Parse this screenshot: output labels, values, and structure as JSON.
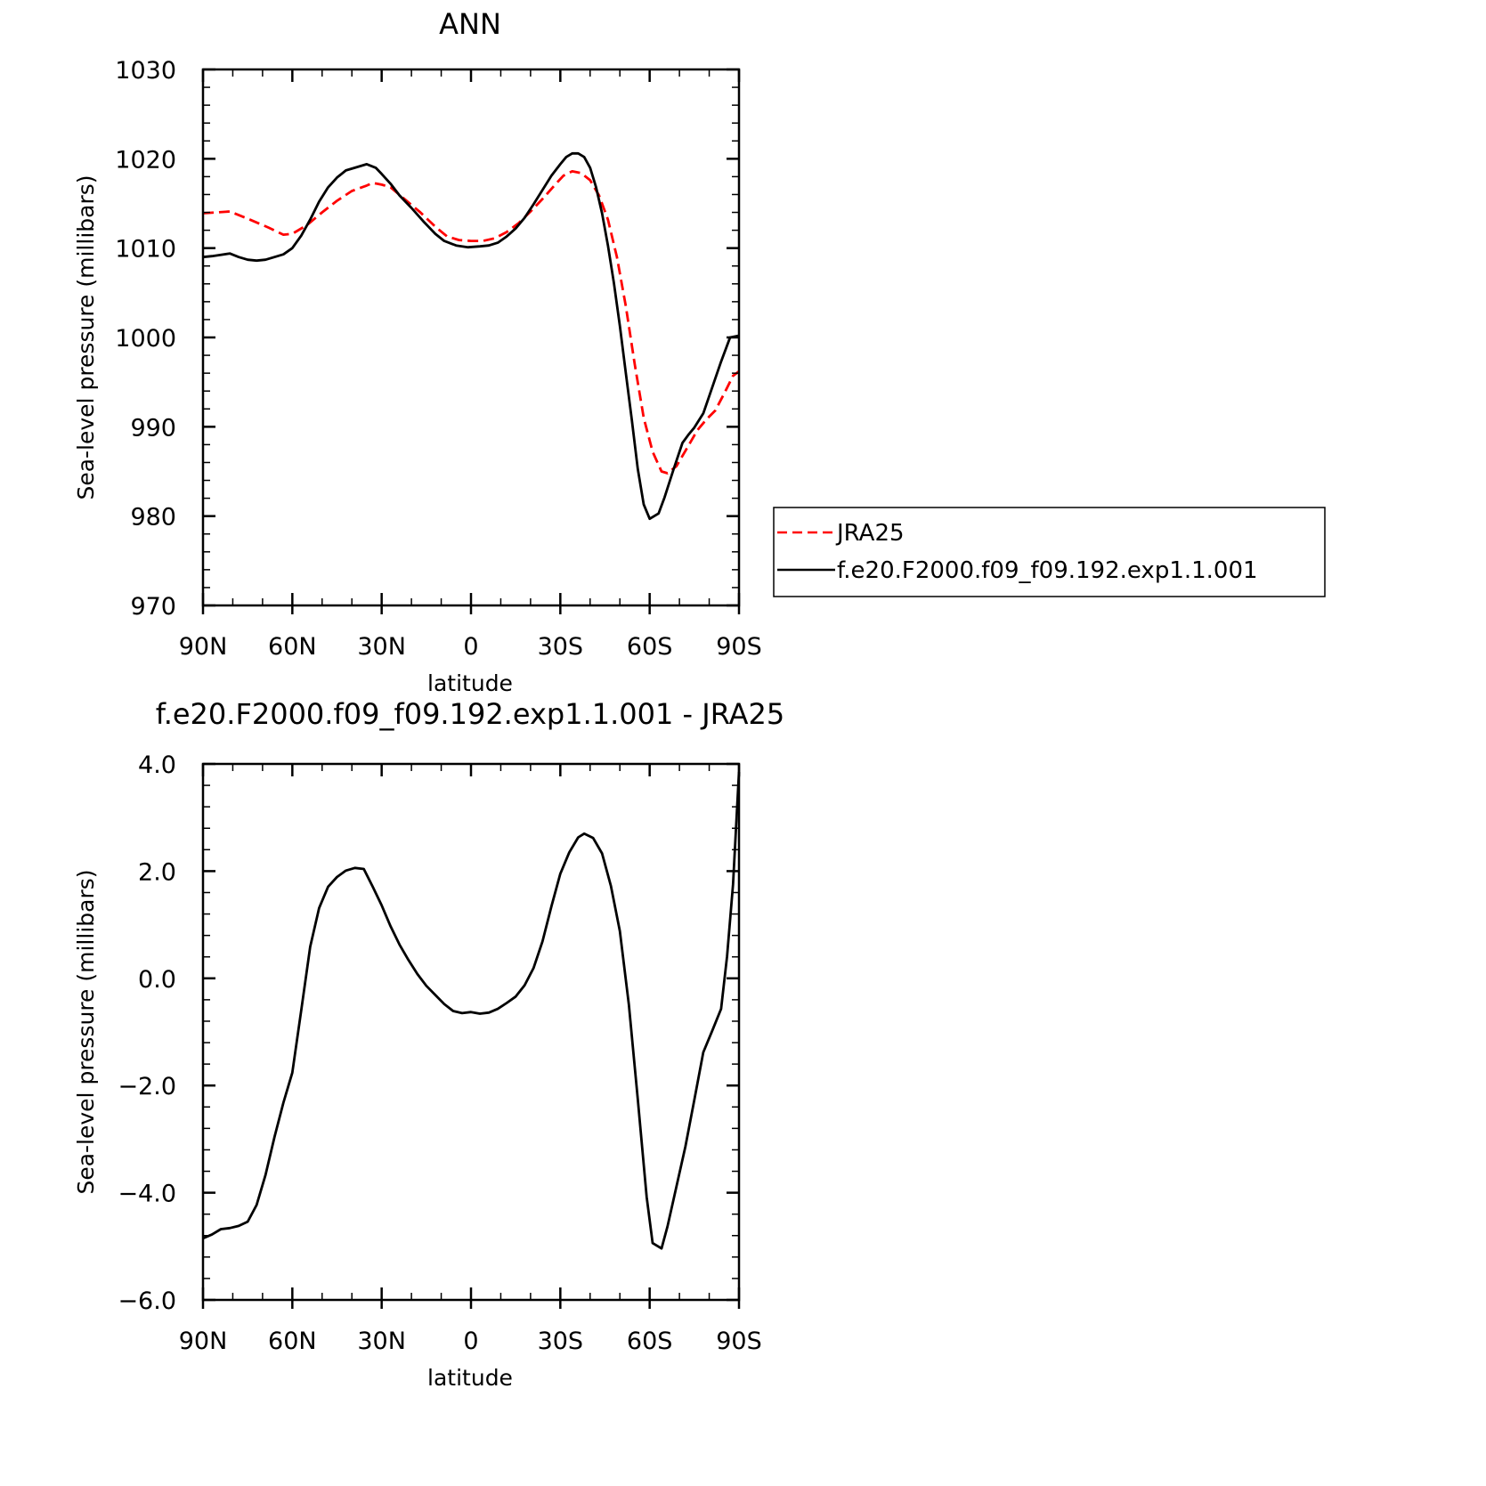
{
  "chart_data": [
    {
      "type": "line",
      "title": "ANN",
      "xlabel": "latitude",
      "ylabel": "Sea-level pressure (millibars)",
      "xlim": [
        90,
        -90
      ],
      "ylim": [
        970,
        1030
      ],
      "x_ticks": [
        {
          "value": 90,
          "label": "90N"
        },
        {
          "value": 60,
          "label": "60N"
        },
        {
          "value": 30,
          "label": "30N"
        },
        {
          "value": 0,
          "label": "0"
        },
        {
          "value": -30,
          "label": "30S"
        },
        {
          "value": -60,
          "label": "60S"
        },
        {
          "value": -90,
          "label": "90S"
        }
      ],
      "y_ticks": [
        {
          "value": 1030,
          "label": "1030"
        },
        {
          "value": 1020,
          "label": "1020"
        },
        {
          "value": 1010,
          "label": "1010"
        },
        {
          "value": 1000,
          "label": "1000"
        },
        {
          "value": 990,
          "label": "990"
        },
        {
          "value": 980,
          "label": "980"
        },
        {
          "value": 970,
          "label": "970"
        }
      ],
      "legend": "right",
      "series": [
        {
          "name": "JRA25",
          "color": "#ff0000",
          "dash": "dashed",
          "points": [
            [
              90,
              1013.9
            ],
            [
              85,
              1014.0
            ],
            [
              81,
              1014.1
            ],
            [
              75,
              1013.3
            ],
            [
              68,
              1012.3
            ],
            [
              63,
              1011.5
            ],
            [
              60,
              1011.6
            ],
            [
              55,
              1012.6
            ],
            [
              50,
              1014.0
            ],
            [
              45,
              1015.3
            ],
            [
              40,
              1016.4
            ],
            [
              35,
              1017.0
            ],
            [
              33,
              1017.3
            ],
            [
              30,
              1017.1
            ],
            [
              27,
              1016.8
            ],
            [
              22,
              1015.4
            ],
            [
              17,
              1014.0
            ],
            [
              12,
              1012.4
            ],
            [
              8,
              1011.3
            ],
            [
              4,
              1010.9
            ],
            [
              0,
              1010.8
            ],
            [
              -4,
              1010.8
            ],
            [
              -8,
              1011.1
            ],
            [
              -12,
              1011.8
            ],
            [
              -16,
              1012.8
            ],
            [
              -20,
              1014.1
            ],
            [
              -24,
              1015.5
            ],
            [
              -28,
              1017.0
            ],
            [
              -31,
              1018.1
            ],
            [
              -34,
              1018.6
            ],
            [
              -37,
              1018.4
            ],
            [
              -40,
              1017.6
            ],
            [
              -43,
              1015.9
            ],
            [
              -46,
              1013.2
            ],
            [
              -49,
              1009.0
            ],
            [
              -52,
              1003.5
            ],
            [
              -55,
              997.0
            ],
            [
              -58,
              991.0
            ],
            [
              -61,
              987.2
            ],
            [
              -64,
              985.0
            ],
            [
              -66,
              984.8
            ],
            [
              -69,
              985.6
            ],
            [
              -72,
              987.3
            ],
            [
              -76,
              989.6
            ],
            [
              -79,
              990.8
            ],
            [
              -82,
              991.8
            ],
            [
              -85,
              993.7
            ],
            [
              -88,
              995.7
            ],
            [
              -90,
              996.2
            ]
          ]
        },
        {
          "name": "f.e20.F2000.f09_f09.192.exp1.1.001",
          "color": "#000000",
          "dash": "solid",
          "points": [
            [
              90,
              1009.0
            ],
            [
              87,
              1009.1
            ],
            [
              81,
              1009.4
            ],
            [
              78,
              1009.0
            ],
            [
              75,
              1008.7
            ],
            [
              72,
              1008.6
            ],
            [
              69,
              1008.7
            ],
            [
              66,
              1009.0
            ],
            [
              63,
              1009.3
            ],
            [
              60,
              1010.0
            ],
            [
              57,
              1011.4
            ],
            [
              54,
              1013.2
            ],
            [
              51,
              1015.2
            ],
            [
              48,
              1016.8
            ],
            [
              45,
              1017.9
            ],
            [
              42,
              1018.7
            ],
            [
              39,
              1019.0
            ],
            [
              36,
              1019.3
            ],
            [
              35,
              1019.4
            ],
            [
              32,
              1019.0
            ],
            [
              30,
              1018.3
            ],
            [
              27,
              1017.2
            ],
            [
              24,
              1015.9
            ],
            [
              20,
              1014.5
            ],
            [
              16,
              1013.0
            ],
            [
              12,
              1011.6
            ],
            [
              9,
              1010.8
            ],
            [
              5,
              1010.3
            ],
            [
              1,
              1010.1
            ],
            [
              -3,
              1010.2
            ],
            [
              -6,
              1010.3
            ],
            [
              -9,
              1010.6
            ],
            [
              -12,
              1011.3
            ],
            [
              -15,
              1012.2
            ],
            [
              -18,
              1013.4
            ],
            [
              -21,
              1014.9
            ],
            [
              -24,
              1016.5
            ],
            [
              -27,
              1018.1
            ],
            [
              -30,
              1019.4
            ],
            [
              -32,
              1020.2
            ],
            [
              -34,
              1020.6
            ],
            [
              -36,
              1020.6
            ],
            [
              -38,
              1020.2
            ],
            [
              -40,
              1019.0
            ],
            [
              -42,
              1016.8
            ],
            [
              -44,
              1013.9
            ],
            [
              -46,
              1010.3
            ],
            [
              -48,
              1006.1
            ],
            [
              -50,
              1001.3
            ],
            [
              -52,
              996.0
            ],
            [
              -54,
              990.8
            ],
            [
              -56,
              985.3
            ],
            [
              -58,
              981.3
            ],
            [
              -60,
              979.7
            ],
            [
              -63,
              980.3
            ],
            [
              -65,
              982.1
            ],
            [
              -68,
              985.2
            ],
            [
              -71,
              988.2
            ],
            [
              -73,
              989.1
            ],
            [
              -75,
              989.9
            ],
            [
              -78,
              991.5
            ],
            [
              -81,
              994.4
            ],
            [
              -84,
              997.3
            ],
            [
              -87,
              1000.0
            ],
            [
              -90,
              1000.2
            ]
          ]
        }
      ]
    },
    {
      "type": "line",
      "title": "f.e20.F2000.f09_f09.192.exp1.1.001 - JRA25",
      "xlabel": "latitude",
      "ylabel": "Sea-level pressure (millibars)",
      "xlim": [
        90,
        -90
      ],
      "ylim": [
        -6,
        4
      ],
      "x_ticks": [
        {
          "value": 90,
          "label": "90N"
        },
        {
          "value": 60,
          "label": "60N"
        },
        {
          "value": 30,
          "label": "30N"
        },
        {
          "value": 0,
          "label": "0"
        },
        {
          "value": -30,
          "label": "30S"
        },
        {
          "value": -60,
          "label": "60S"
        },
        {
          "value": -90,
          "label": "90S"
        }
      ],
      "y_ticks": [
        {
          "value": 4,
          "label": "4.0"
        },
        {
          "value": 2,
          "label": "2.0"
        },
        {
          "value": 0,
          "label": "0.0"
        },
        {
          "value": -2,
          "label": "−2.0"
        },
        {
          "value": -4,
          "label": "−4.0"
        },
        {
          "value": -6,
          "label": "−6.0"
        }
      ],
      "series": [
        {
          "color": "#000000",
          "dash": "solid",
          "points": [
            [
              90,
              -4.85
            ],
            [
              87,
              -4.78
            ],
            [
              84,
              -4.68
            ],
            [
              81,
              -4.66
            ],
            [
              78,
              -4.62
            ],
            [
              75,
              -4.54
            ],
            [
              72,
              -4.23
            ],
            [
              69,
              -3.67
            ],
            [
              66,
              -2.96
            ],
            [
              63,
              -2.32
            ],
            [
              60,
              -1.76
            ],
            [
              57,
              -0.59
            ],
            [
              54,
              0.59
            ],
            [
              51,
              1.31
            ],
            [
              48,
              1.71
            ],
            [
              45,
              1.89
            ],
            [
              42,
              2.01
            ],
            [
              39,
              2.06
            ],
            [
              36,
              2.04
            ],
            [
              33,
              1.71
            ],
            [
              30,
              1.36
            ],
            [
              27,
              0.97
            ],
            [
              24,
              0.63
            ],
            [
              21,
              0.34
            ],
            [
              18,
              0.08
            ],
            [
              15,
              -0.14
            ],
            [
              12,
              -0.31
            ],
            [
              9,
              -0.48
            ],
            [
              6,
              -0.61
            ],
            [
              3,
              -0.65
            ],
            [
              0,
              -0.63
            ],
            [
              -3,
              -0.66
            ],
            [
              -6,
              -0.64
            ],
            [
              -9,
              -0.57
            ],
            [
              -12,
              -0.46
            ],
            [
              -15,
              -0.34
            ],
            [
              -18,
              -0.13
            ],
            [
              -21,
              0.19
            ],
            [
              -24,
              0.69
            ],
            [
              -27,
              1.34
            ],
            [
              -30,
              1.95
            ],
            [
              -33,
              2.35
            ],
            [
              -36,
              2.63
            ],
            [
              -38,
              2.7
            ],
            [
              -41,
              2.62
            ],
            [
              -44,
              2.33
            ],
            [
              -47,
              1.72
            ],
            [
              -50,
              0.88
            ],
            [
              -53,
              -0.49
            ],
            [
              -56,
              -2.25
            ],
            [
              -59,
              -4.08
            ],
            [
              -61,
              -4.94
            ],
            [
              -64,
              -5.04
            ],
            [
              -66,
              -4.63
            ],
            [
              -69,
              -3.88
            ],
            [
              -72,
              -3.14
            ],
            [
              -75,
              -2.27
            ],
            [
              -78,
              -1.38
            ],
            [
              -81,
              -0.98
            ],
            [
              -84,
              -0.57
            ],
            [
              -86,
              0.41
            ],
            [
              -88,
              1.75
            ],
            [
              -90,
              3.85
            ]
          ]
        }
      ]
    }
  ]
}
